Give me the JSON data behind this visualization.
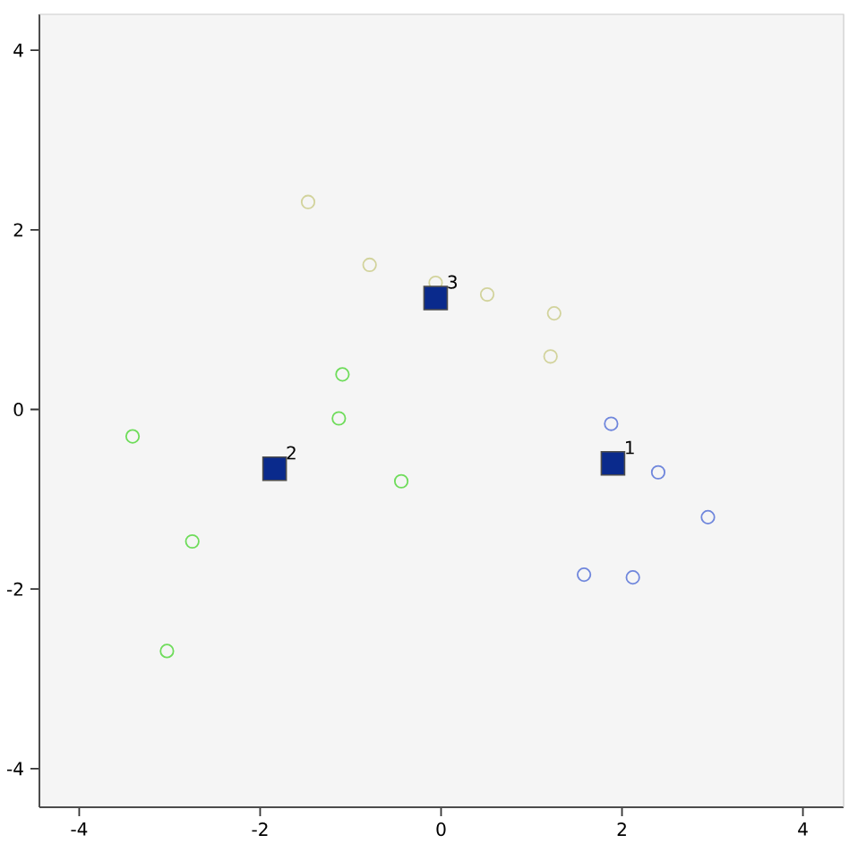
{
  "chart_data": {
    "type": "scatter",
    "xlim": [
      -4.44,
      4.45
    ],
    "ylim": [
      -4.43,
      4.4
    ],
    "xticks": [
      -4,
      -2,
      0,
      2,
      4
    ],
    "yticks": [
      -4,
      -2,
      0,
      2,
      4
    ],
    "grid": false,
    "series": [
      {
        "color": "#6f86dc",
        "marker": "circle",
        "x": [
          1.88,
          2.4,
          2.95,
          1.58,
          2.12
        ],
        "values": [
          -0.16,
          -0.7,
          -1.2,
          -1.84,
          -1.87
        ]
      },
      {
        "color": "#6edc5a",
        "marker": "circle",
        "x": [
          -3.41,
          -1.09,
          -1.13,
          -0.44,
          -2.75,
          -3.03
        ],
        "values": [
          -0.3,
          0.39,
          -0.1,
          -0.8,
          -1.47,
          -2.69
        ]
      },
      {
        "color": "#d2d39c",
        "marker": "circle",
        "x": [
          -1.47,
          -0.79,
          -0.06,
          0.51,
          1.25,
          1.21
        ],
        "values": [
          2.31,
          1.61,
          1.41,
          1.28,
          1.07,
          0.59
        ]
      },
      {
        "color": "#0a2a8c",
        "marker": "square",
        "x": [
          1.9,
          -1.84,
          -0.06
        ],
        "values": [
          -0.6,
          -0.66,
          1.24
        ]
      }
    ],
    "annotations": [
      {
        "text": "1",
        "x": 1.9,
        "y": -0.6
      },
      {
        "text": "2",
        "x": -1.84,
        "y": -0.66
      },
      {
        "text": "3",
        "x": -0.06,
        "y": 1.24
      }
    ]
  }
}
